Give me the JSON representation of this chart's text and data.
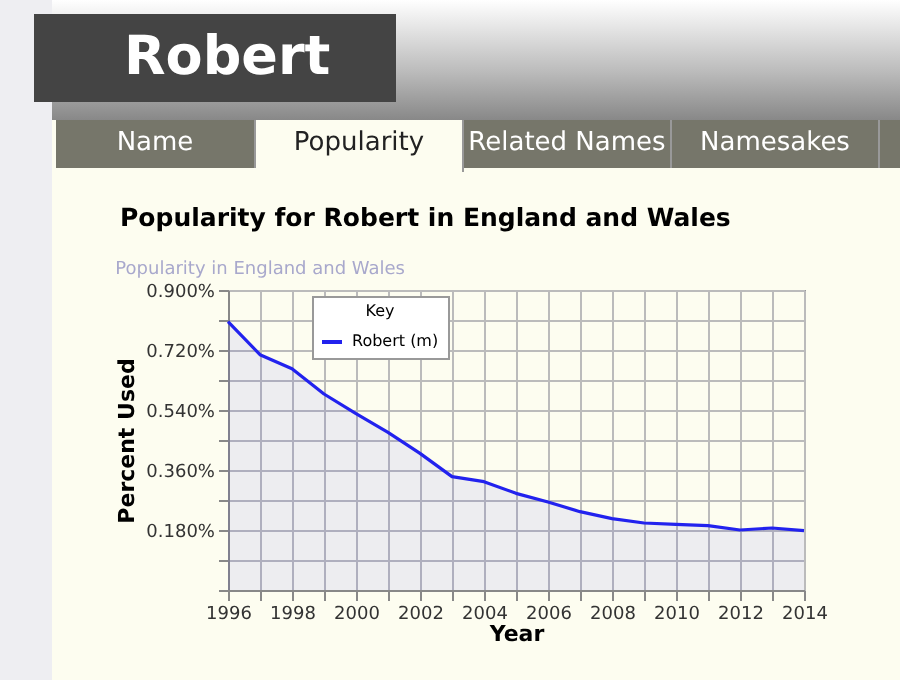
{
  "chart_data": {
    "type": "area",
    "title": "Popularity for Robert in England and Wales",
    "subtitle": "Popularity in England and Wales",
    "xlabel": "Year",
    "ylabel": "Percent Used",
    "legend_title": "Key",
    "annotations": [
      "Robert",
      "Name",
      "Popularity",
      "Related Names",
      "Namesakes"
    ],
    "x": [
      1996,
      1997,
      1998,
      1999,
      2000,
      2001,
      2002,
      2003,
      2004,
      2005,
      2006,
      2007,
      2008,
      2009,
      2010,
      2011,
      2012,
      2013,
      2014
    ],
    "series": [
      {
        "name": "Robert (m)",
        "color": "#2222ee",
        "values": [
          0.805,
          0.706,
          0.664,
          0.588,
          0.529,
          0.473,
          0.41,
          0.34,
          0.325,
          0.29,
          0.264,
          0.235,
          0.214,
          0.201,
          0.197,
          0.193,
          0.18,
          0.186,
          0.178
        ]
      }
    ],
    "xlim": [
      1996,
      2014
    ],
    "xticks": [
      1996,
      {
        "value": 1997,
        "label": null
      },
      1998,
      {
        "value": 1999,
        "label": null
      },
      2000,
      {
        "value": 2001,
        "label": null
      },
      2002,
      {
        "value": 2003,
        "label": null
      },
      2004,
      {
        "value": 2005,
        "label": null
      },
      2006,
      {
        "value": 2007,
        "label": null
      },
      2008,
      {
        "value": 2009,
        "label": null
      },
      2010,
      {
        "value": 2011,
        "label": null
      },
      2012,
      {
        "value": 2013,
        "label": null
      },
      2014
    ],
    "ylim": [
      0,
      0.9
    ],
    "yticks": [
      {
        "value": 0,
        "label": null
      },
      {
        "value": 0.09,
        "label": null
      },
      {
        "value": 0.18,
        "label": "0.180%"
      },
      {
        "value": 0.27,
        "label": null
      },
      {
        "value": 0.36,
        "label": "0.360%"
      },
      {
        "value": 0.45,
        "label": null
      },
      {
        "value": 0.54,
        "label": "0.540%"
      },
      {
        "value": 0.63,
        "label": null
      },
      {
        "value": 0.72,
        "label": "0.720%"
      },
      {
        "value": 0.81,
        "label": null
      },
      {
        "value": 0.9,
        "label": "0.900%"
      }
    ],
    "grid": true,
    "legend": "top left",
    "marker": "none",
    "line_style": "solid"
  }
}
